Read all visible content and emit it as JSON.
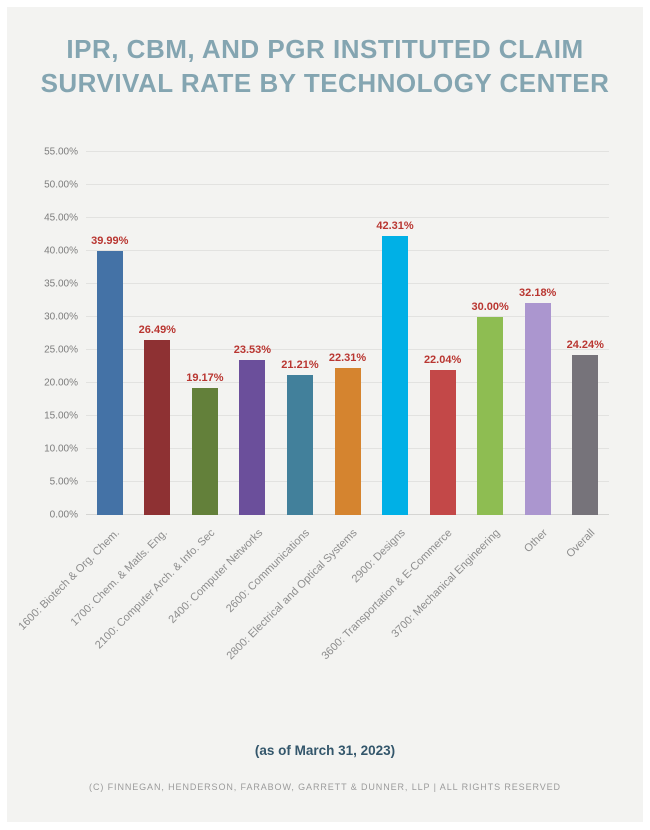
{
  "header": {
    "title_line1": "IPR, CBM, AND PGR INSTITUTED CLAIM",
    "title_line2": "SURVIVAL RATE BY TECHNOLOGY CENTER"
  },
  "footer": {
    "as_of": "(as of March 31, 2023)",
    "copyright": "(C) FINNEGAN, HENDERSON, FARABOW, GARRETT & DUNNER, LLP | ALL RIGHTS RESERVED"
  },
  "colors": {
    "card_background": "#f3f3f1",
    "page_background": "#ffffff",
    "title_text": "#84a5b1",
    "value_label_text": "#b93631",
    "axis_label_text": "#7d7d7d",
    "category_label_text": "#8d8d8d",
    "gridline": "#e2e2e0",
    "as_of_text": "#33566b",
    "copyright_text": "#9b9b9b"
  },
  "chart_data": {
    "type": "bar",
    "title": "IPR, CBM, AND PGR INSTITUTED CLAIM SURVIVAL RATE BY TECHNOLOGY CENTER",
    "subtitle": "(as of March 31, 2023)",
    "xlabel": "",
    "ylabel": "",
    "ylim": [
      0,
      55
    ],
    "grid": true,
    "legend": false,
    "categories": [
      "1600: Biotech & Org. Chem.",
      "1700: Chem. & Matls. Eng.",
      "2100: Computer Arch. & Info. Sec",
      "2400: Computer Networks",
      "2600: Communications",
      "2800: Electrical and Optical Systems",
      "2900: Designs",
      "3600: Transportation & E-Commerce",
      "3700: Mechanical Engineering",
      "Other",
      "Overall"
    ],
    "values": [
      39.99,
      26.49,
      19.17,
      23.53,
      21.21,
      22.31,
      42.31,
      22.04,
      30.0,
      32.18,
      24.24
    ],
    "value_labels": [
      "39.99%",
      "26.49%",
      "19.17%",
      "23.53%",
      "21.21%",
      "22.31%",
      "42.31%",
      "22.04%",
      "30.00%",
      "32.18%",
      "24.24%"
    ],
    "bar_colors": [
      "#4472a6",
      "#8e3133",
      "#63803a",
      "#6b4f9b",
      "#42809b",
      "#d5842f",
      "#00b0e6",
      "#c34848",
      "#8ebd52",
      "#ab96cf",
      "#76737a"
    ],
    "ytick_values": [
      0,
      5,
      10,
      15,
      20,
      25,
      30,
      35,
      40,
      45,
      50,
      55
    ],
    "ytick_labels": [
      "0.00%",
      "5.00%",
      "10.00%",
      "15.00%",
      "20.00%",
      "25.00%",
      "30.00%",
      "35.00%",
      "40.00%",
      "45.00%",
      "50.00%",
      "55.00%"
    ]
  }
}
